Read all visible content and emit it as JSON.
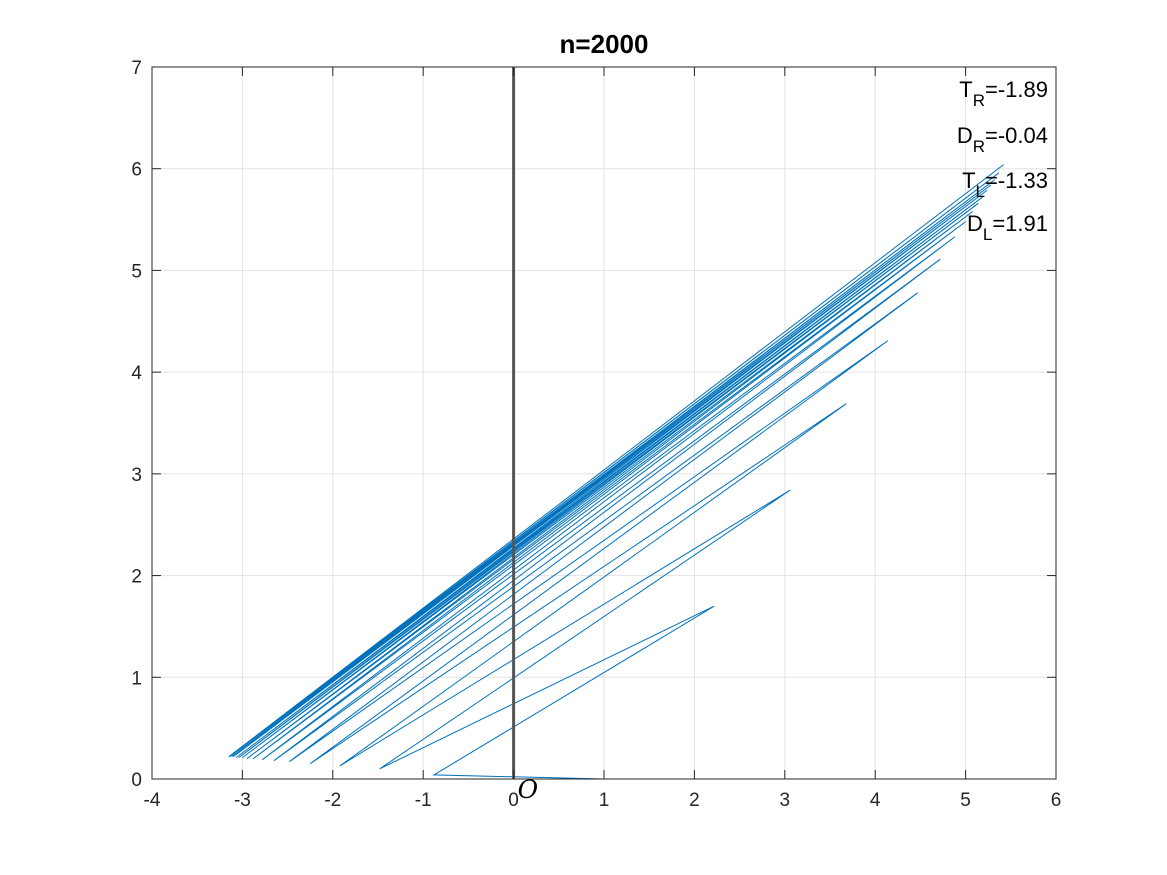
{
  "chart_data": {
    "type": "line",
    "title": "n=2000",
    "xlabel": "",
    "ylabel": "",
    "xlim": [
      -4,
      6
    ],
    "ylim": [
      0,
      7
    ],
    "xticks": [
      -4,
      -3,
      -2,
      -1,
      0,
      1,
      2,
      3,
      4,
      5,
      6
    ],
    "yticks": [
      0,
      1,
      2,
      3,
      4,
      5,
      6,
      7
    ],
    "grid": true,
    "series_color": "#0072BD",
    "vertical_line": {
      "x": 0,
      "color": "#555555"
    },
    "origin_label": "O",
    "annotations": [
      {
        "main": "T",
        "sub": "R",
        "value": "=-1.89"
      },
      {
        "main": "D",
        "sub": "R",
        "value": "=-0.04"
      },
      {
        "main": "T",
        "sub": "L",
        "value": "=-1.33"
      },
      {
        "main": "D",
        "sub": "L",
        "value": "=1.91"
      }
    ],
    "series": [
      {
        "x": [
          0,
          1,
          -0.88,
          2.22,
          -1.48,
          3.06,
          -1.92,
          3.68,
          -2.25,
          4.14,
          -2.48,
          4.47,
          -2.65,
          4.72,
          -2.78,
          4.88,
          -2.88,
          5.0,
          -2.95,
          5.08,
          -3.0,
          5.14,
          -3.04,
          5.2,
          -3.07,
          5.24,
          -3.1,
          5.28,
          -3.12,
          5.32,
          -3.14,
          5.37,
          -3.15,
          5.42
        ],
        "y": [
          0,
          0,
          0.04,
          1.7,
          0.1,
          2.84,
          0.13,
          3.69,
          0.15,
          4.31,
          0.17,
          4.78,
          0.18,
          5.11,
          0.19,
          5.33,
          0.2,
          5.48,
          0.2,
          5.58,
          0.21,
          5.66,
          0.21,
          5.73,
          0.21,
          5.79,
          0.22,
          5.84,
          0.22,
          5.89,
          0.22,
          5.96,
          0.22,
          6.04
        ]
      }
    ]
  }
}
